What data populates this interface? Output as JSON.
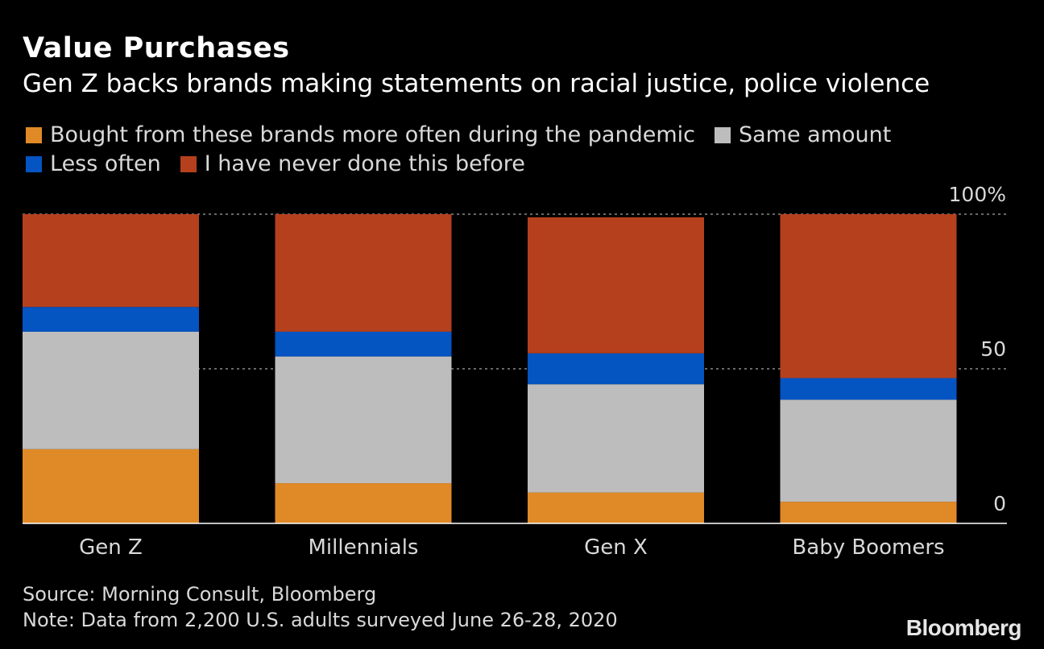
{
  "title": "Value Purchases",
  "subtitle": "Gen Z backs brands making statements on racial justice, police violence",
  "source": "Source: Morning Consult, Bloomberg",
  "note": "Note: Data from 2,200 U.S. adults surveyed June 26-28, 2020",
  "brand": "Bloomberg",
  "chart_data": {
    "type": "bar",
    "stacked": true,
    "categories": [
      "Gen Z",
      "Millennials",
      "Gen X",
      "Baby Boomers"
    ],
    "series": [
      {
        "name": "Bought from these brands more often during the pandemic",
        "color": "#e08a27",
        "values": [
          24,
          13,
          10,
          7
        ]
      },
      {
        "name": "Same amount",
        "color": "#bdbdbd",
        "values": [
          38,
          41,
          35,
          33
        ]
      },
      {
        "name": "Less often",
        "color": "#0454c2",
        "values": [
          8,
          8,
          10,
          7
        ]
      },
      {
        "name": "I have never done this before",
        "color": "#b5401e",
        "values": [
          30,
          38,
          44,
          53
        ]
      }
    ],
    "yticks": [
      {
        "value": 0,
        "label": "0"
      },
      {
        "value": 50,
        "label": "50"
      },
      {
        "value": 100,
        "label": "100%"
      }
    ],
    "ylim": [
      0,
      100
    ],
    "legend_position": "top-left",
    "grid": true
  }
}
